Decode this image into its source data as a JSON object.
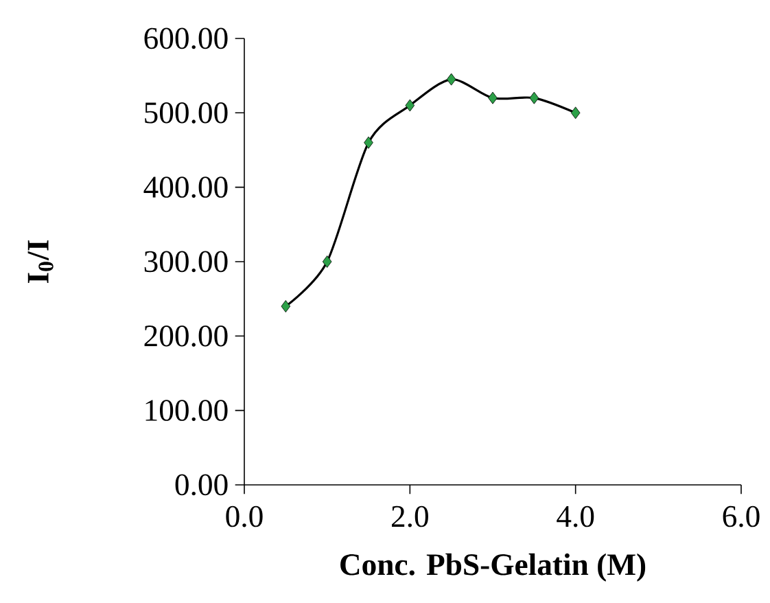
{
  "chart_data": {
    "type": "line",
    "xlabel": "Conc. PbS-Gelatin (M)",
    "ylabel": "I$_{0}$/I",
    "x": [
      0.5,
      1.0,
      1.5,
      2.0,
      2.5,
      3.0,
      3.5,
      4.0
    ],
    "series": [
      {
        "color": "#2ca048",
        "values": [
          240,
          300,
          460,
          510,
          545,
          520,
          520,
          500
        ]
      }
    ],
    "xlim": [
      0,
      6
    ],
    "xticks": [
      {
        "value": 0,
        "label": "0.0"
      },
      {
        "value": 2,
        "label": "2.0"
      },
      {
        "value": 4,
        "label": "4.0"
      },
      {
        "value": 6,
        "label": "6.0"
      }
    ],
    "ylim": [
      0,
      600
    ],
    "yticks": [
      {
        "value": 0,
        "label": "0.00"
      },
      {
        "value": 100,
        "label": "100.00"
      },
      {
        "value": 200,
        "label": "200.00"
      },
      {
        "value": 300,
        "label": "300.00"
      },
      {
        "value": 400,
        "label": "400.00"
      },
      {
        "value": 500,
        "label": "500.00"
      },
      {
        "value": 600,
        "label": "600.00"
      }
    ],
    "grid": false,
    "marker": "diamond",
    "line_style": "solid"
  }
}
